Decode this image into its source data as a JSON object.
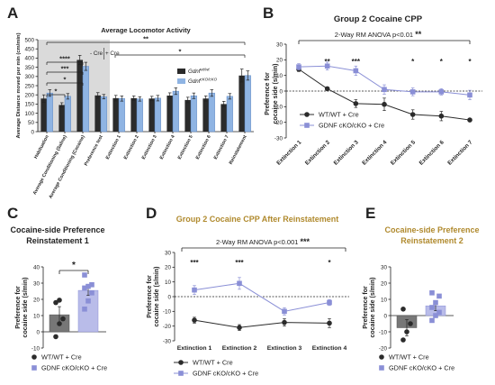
{
  "figure": {
    "panels": [
      {
        "letter": "A"
      },
      {
        "letter": "B"
      },
      {
        "letter": "C"
      },
      {
        "letter": "D"
      },
      {
        "letter": "E"
      }
    ]
  },
  "colors": {
    "dark": "#2b2b2b",
    "blue": "#8fb4e3",
    "purple": "#8a8fd6",
    "gold": "#b08a2e",
    "shade": "#d3d3d3"
  },
  "chart_data": [
    {
      "panel": "A",
      "type": "bar",
      "title": "Average Locomotor Activity",
      "ylabel": "Average Distance moved per min (cm/min)",
      "ylim": [
        0,
        500
      ],
      "yticks": [
        0,
        50,
        100,
        150,
        200,
        250,
        300,
        350,
        400,
        450,
        500
      ],
      "shaded_region": "Habituation through Preference test",
      "categories": [
        "Habituation",
        "Average Conditioning (Saline)",
        "Average Conditioning (Cocaine)",
        "Preference test",
        "Extinction 1",
        "Extinction 2",
        "Extinction 3",
        "Extinction 4",
        "Extinction 5",
        "Extinction 6",
        "Extinction 7",
        "Reinstatement"
      ],
      "series": [
        {
          "name": "Gdnf",
          "name_sup": "wt/wt",
          "color": "#2b2b2b",
          "values": [
            180,
            145,
            390,
            197,
            182,
            182,
            180,
            196,
            172,
            180,
            150,
            305
          ],
          "errors": [
            20,
            12,
            25,
            15,
            15,
            12,
            12,
            15,
            15,
            14,
            15,
            35
          ]
        },
        {
          "name": "Gdnf",
          "name_sup": "cKO/cKO",
          "color": "#8fb4e3",
          "values": [
            210,
            192,
            355,
            190,
            180,
            178,
            182,
            220,
            195,
            210,
            192,
            305
          ],
          "errors": [
            18,
            15,
            22,
            12,
            14,
            12,
            15,
            18,
            15,
            18,
            15,
            25
          ]
        }
      ],
      "legend": "right",
      "annotations": [
        "- Cre",
        "+ Cre",
        "*",
        "*",
        "***",
        "****",
        "**",
        "*"
      ]
    },
    {
      "panel": "B",
      "type": "line",
      "title": "Group 2 Cocaine CPP",
      "ylabel": "Preference for cocaine side (s/min)",
      "ylim": [
        -30,
        30
      ],
      "yticks": [
        -30,
        -20,
        -10,
        0,
        10,
        20,
        30
      ],
      "categories": [
        "Extinction 1",
        "Extinction 2",
        "Extinction 3",
        "Extinction 4",
        "Extinction 5",
        "Extinction 6",
        "Extinction 7"
      ],
      "series": [
        {
          "name": "WT/WT + Cre",
          "color": "#2b2b2b",
          "marker": "circle",
          "values": [
            14,
            1.5,
            -8,
            -8.5,
            -15,
            -16,
            -18.5
          ],
          "errors": [
            1.5,
            1,
            2.5,
            4,
            3,
            3,
            1
          ]
        },
        {
          "name": "GDNF cKO/cKO + Cre",
          "color": "#8a8fd6",
          "marker": "square",
          "values": [
            15.5,
            16,
            13,
            1,
            -0.5,
            -0.5,
            -2.5
          ],
          "errors": [
            2,
            2.5,
            3,
            3,
            2.5,
            2,
            3
          ]
        }
      ],
      "anova": {
        "text": "2-Way RM ANOVA p<0.01",
        "stars": "**"
      },
      "significance": [
        "",
        "**",
        "***",
        "",
        "*",
        "*",
        "*"
      ],
      "legend": "bottom-left"
    },
    {
      "panel": "C",
      "type": "bar",
      "title": "Cocaine-side Preference",
      "subtitle": "Reinstatement 1",
      "ylabel": "Preference for cocaine side (s/min)",
      "ylim": [
        -10,
        40
      ],
      "yticks": [
        -10,
        0,
        10,
        20,
        30,
        40
      ],
      "categories": [
        "WT/WT + Cre",
        "GDNF cKO/cKO + Cre"
      ],
      "values": [
        10.5,
        25.5
      ],
      "errors": [
        5,
        3
      ],
      "points": [
        [
          -3,
          5,
          8,
          18,
          19.5
        ],
        [
          14,
          19,
          24,
          27,
          28,
          29,
          35
        ]
      ],
      "significance": "*",
      "legend": "bottom"
    },
    {
      "panel": "D",
      "type": "line",
      "title": "Group 2 Cocaine CPP After Reinstatement",
      "ylabel": "Preference for cocaine side (s/min)",
      "ylim": [
        -30,
        30
      ],
      "yticks": [
        -30,
        -20,
        -10,
        0,
        10,
        20,
        30
      ],
      "categories": [
        "Extinction 1",
        "Extinction 2",
        "Extinction 3",
        "Extinction 4"
      ],
      "series": [
        {
          "name": "WT/WT + Cre",
          "color": "#2b2b2b",
          "marker": "circle",
          "values": [
            -16,
            -21,
            -17.5,
            -18
          ],
          "errors": [
            2,
            2,
            2.5,
            3
          ]
        },
        {
          "name": "GDNF cKO/cKO + Cre",
          "color": "#8a8fd6",
          "marker": "square",
          "values": [
            4.5,
            9,
            -10,
            -4
          ],
          "errors": [
            3,
            4,
            2.5,
            2
          ]
        }
      ],
      "anova": {
        "text": "2-Way RM ANOVA p<0.001",
        "stars": "***"
      },
      "significance": [
        "***",
        "***",
        "",
        "*"
      ],
      "legend": "bottom-left"
    },
    {
      "panel": "E",
      "type": "bar",
      "title": "Cocaine-side Preference",
      "subtitle": "Reinstatement 2",
      "ylabel": "Preference for cocaine side (s/min)",
      "ylim": [
        -20,
        30
      ],
      "yticks": [
        -20,
        -10,
        0,
        10,
        20,
        30
      ],
      "categories": [
        "WT/WT + Cre",
        "GDNF cKO/cKO + Cre"
      ],
      "values": [
        -7.5,
        6
      ],
      "errors": [
        5,
        3
      ],
      "points": [
        [
          -15,
          -10,
          -5,
          4
        ],
        [
          -3,
          0,
          2,
          5,
          8,
          12,
          14
        ]
      ],
      "legend": "bottom"
    }
  ]
}
